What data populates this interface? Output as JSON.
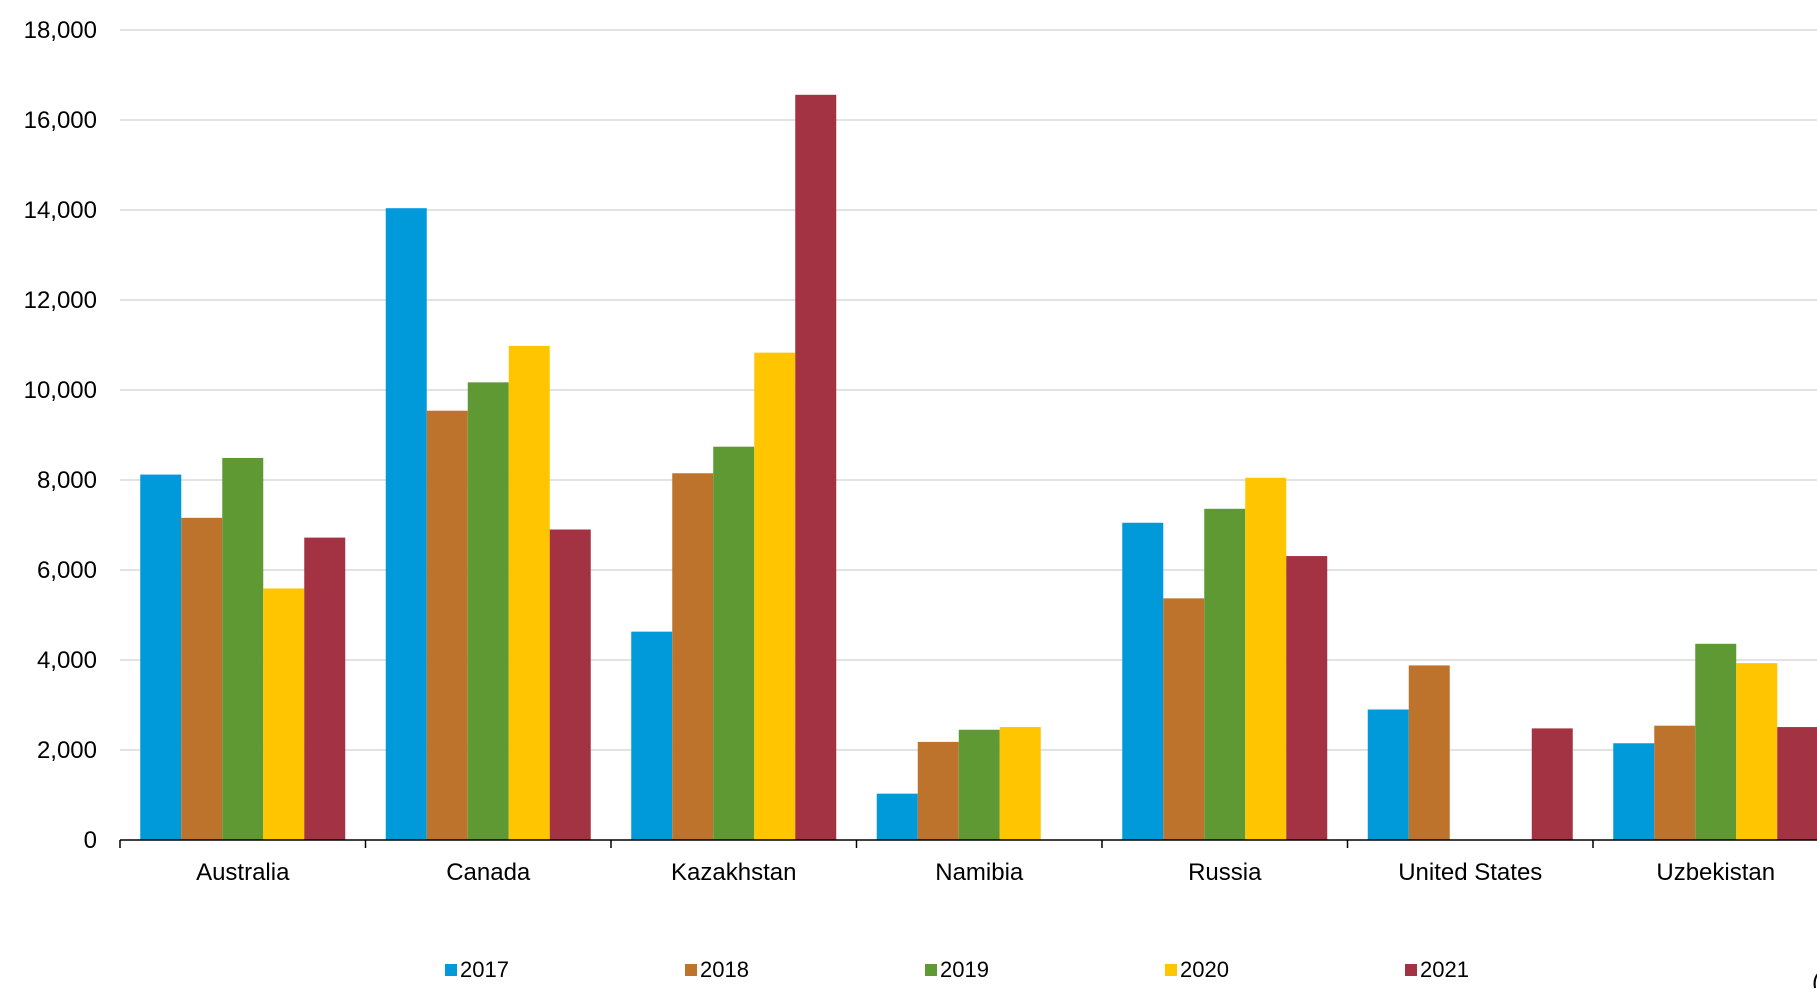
{
  "chart_data": {
    "type": "bar",
    "title": "",
    "xlabel": "",
    "ylabel": "",
    "categories": [
      "Australia",
      "Canada",
      "Kazakhstan",
      "Namibia",
      "Russia",
      "United States",
      "Uzbekistan"
    ],
    "series": [
      {
        "name": "2017",
        "color": "#0099DA",
        "values": [
          8120,
          14040,
          4630,
          1030,
          7050,
          2900,
          2150
        ]
      },
      {
        "name": "2018",
        "color": "#BD732C",
        "values": [
          7160,
          9540,
          8150,
          2180,
          5370,
          3880,
          2540
        ]
      },
      {
        "name": "2019",
        "color": "#5F9933",
        "values": [
          8490,
          10170,
          8740,
          2450,
          7360,
          null,
          4360
        ]
      },
      {
        "name": "2020",
        "color": "#FFC600",
        "values": [
          5590,
          10980,
          10830,
          2510,
          8050,
          null,
          3930
        ]
      },
      {
        "name": "2021",
        "color": "#A33343",
        "values": [
          6720,
          6900,
          16560,
          null,
          6310,
          2480,
          2510
        ]
      }
    ],
    "ylim": [
      0,
      18000
    ],
    "yticks": [
      0,
      2000,
      4000,
      6000,
      8000,
      10000,
      12000,
      14000,
      16000,
      18000
    ],
    "ytick_labels": [
      "0",
      "2,000",
      "4,000",
      "6,000",
      "8,000",
      "10,000",
      "12,000",
      "14,000",
      "16,000",
      "18,000"
    ],
    "grid": true,
    "legend_position": "bottom",
    "stray_text": "("
  }
}
